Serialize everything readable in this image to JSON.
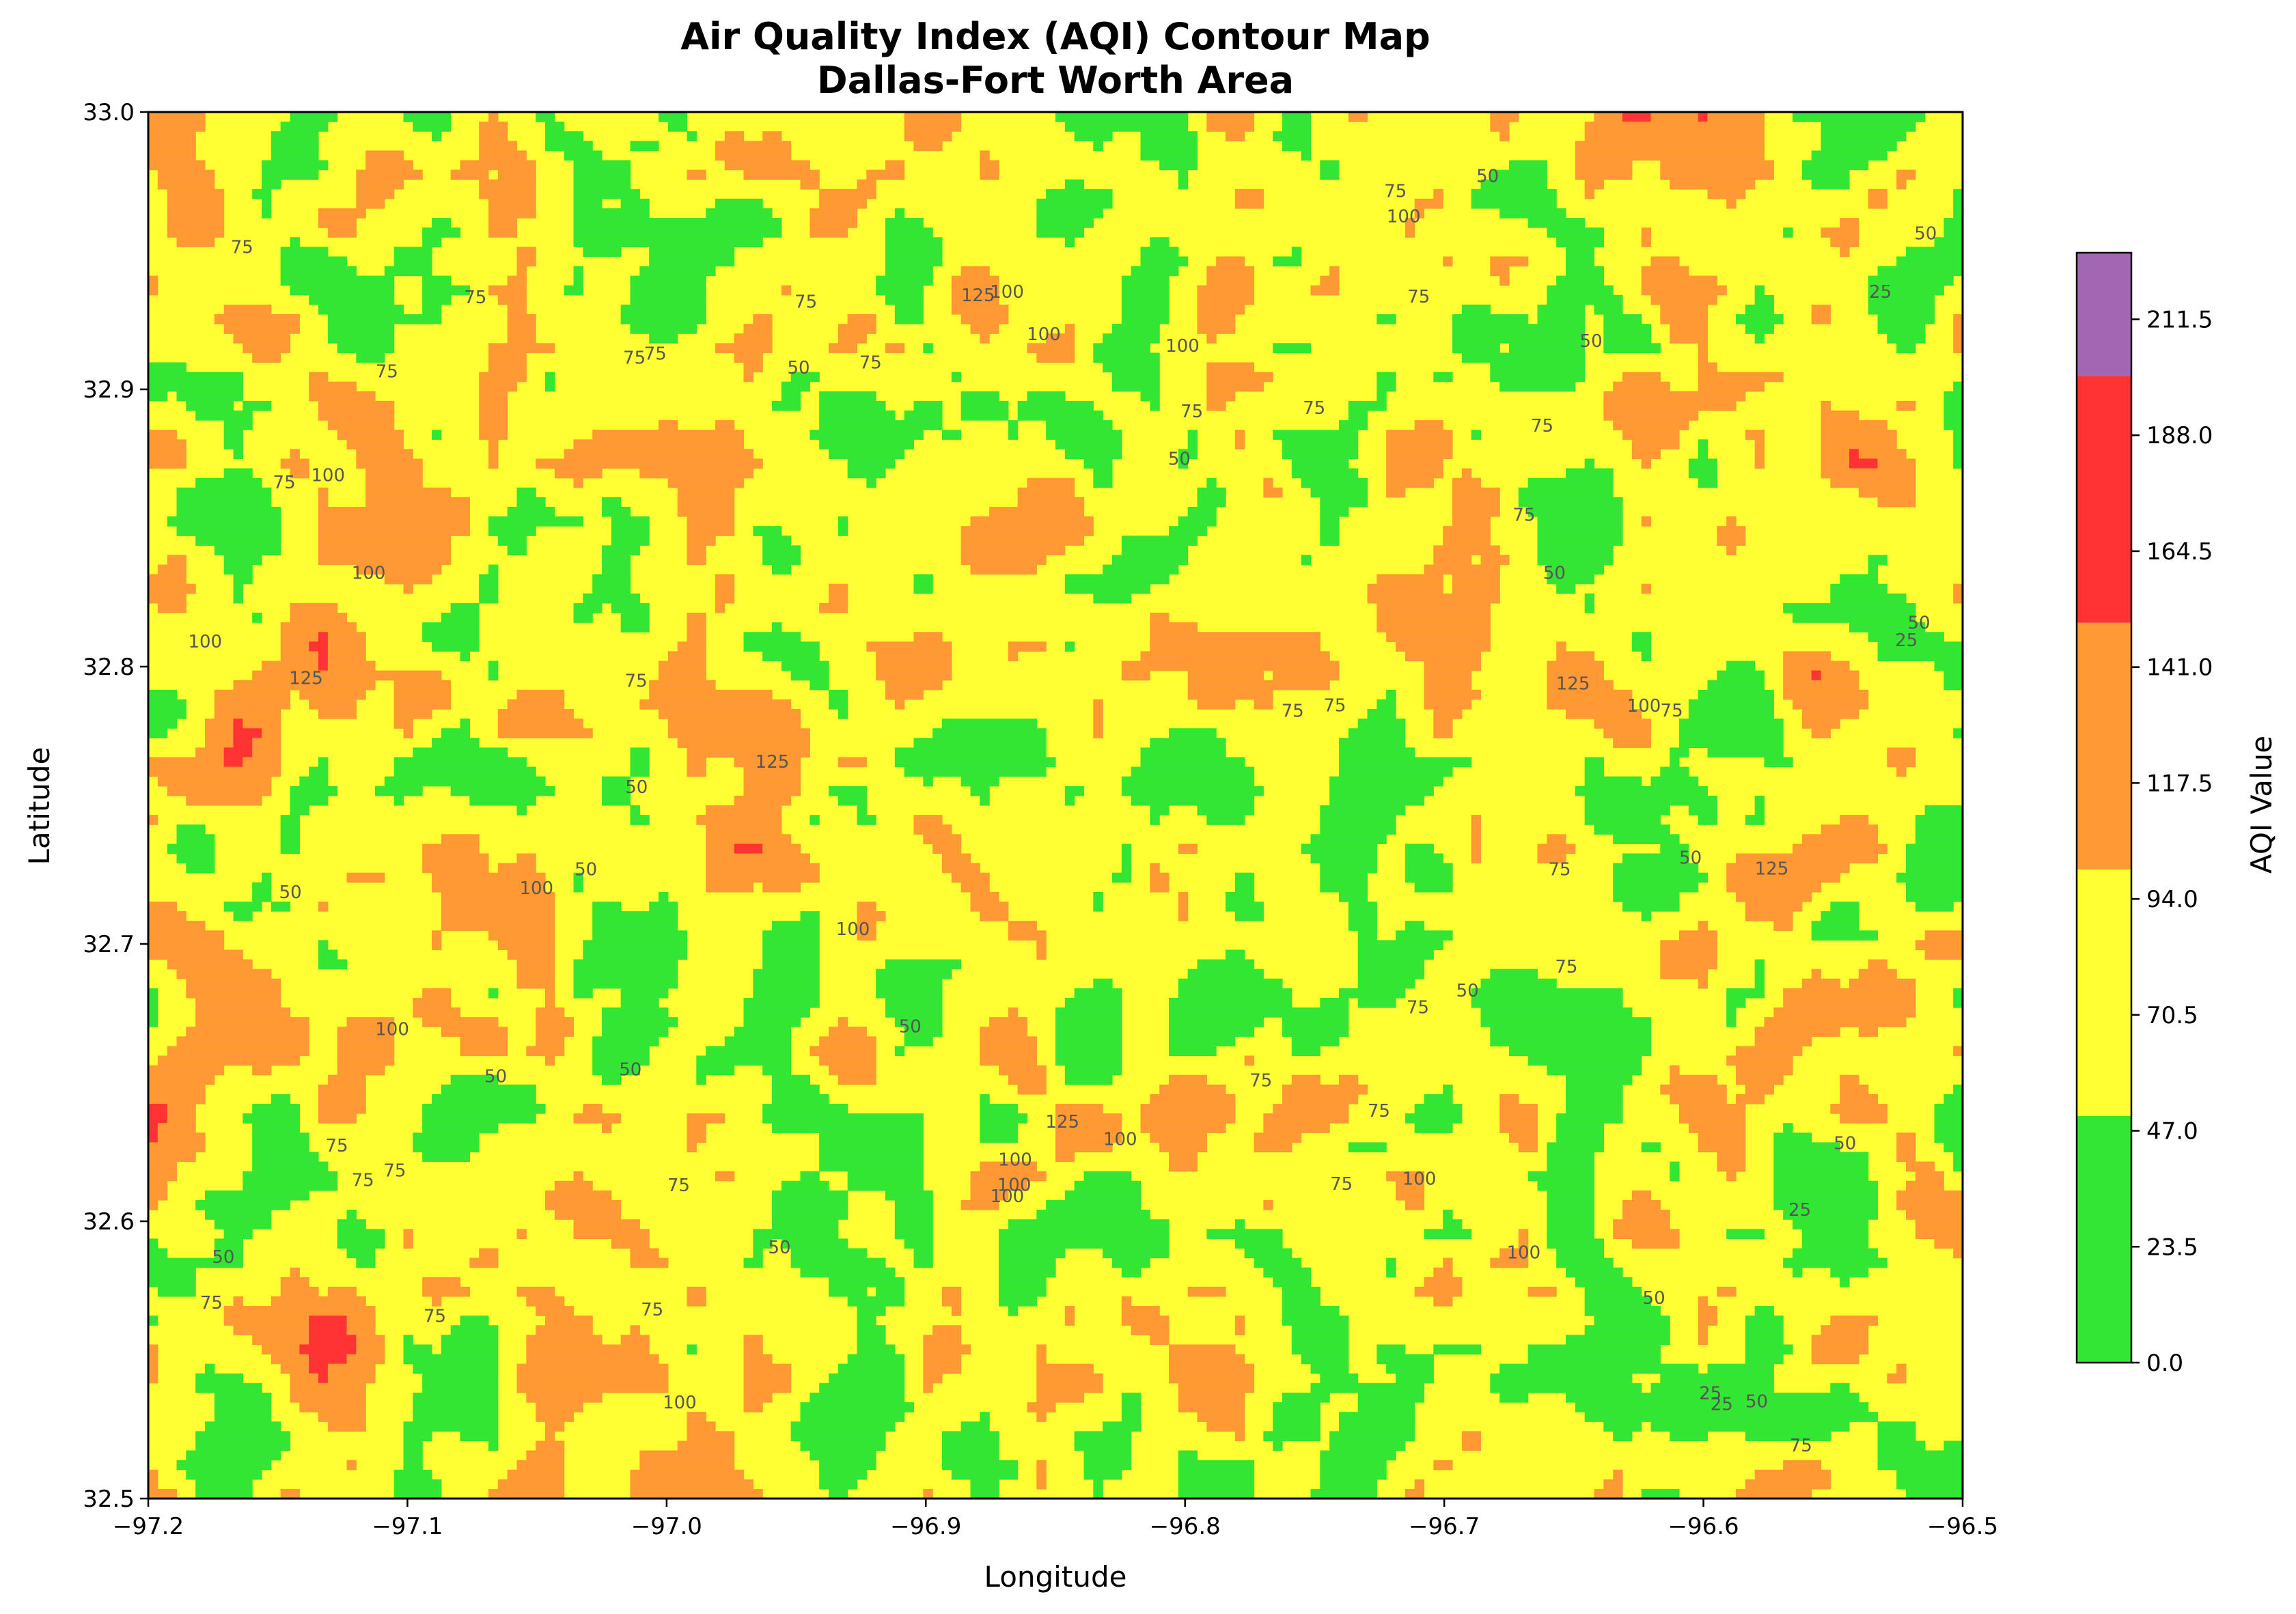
{
  "chart_data": {
    "type": "heatmap",
    "subtype": "filled-contour",
    "title": "Air Quality Index (AQI) Contour Map",
    "subtitle": "Dallas-Fort Worth Area",
    "xlabel": "Longitude",
    "ylabel": "Latitude",
    "xlim": [
      -97.2,
      -96.5
    ],
    "ylim": [
      32.5,
      33.0
    ],
    "x_ticks": [
      "−97.2",
      "−97.1",
      "−97.0",
      "−96.9",
      "−96.8",
      "−96.7",
      "−96.6",
      "−96.5"
    ],
    "y_ticks": [
      "32.5",
      "32.6",
      "32.7",
      "32.8",
      "32.9",
      "33.0"
    ],
    "colorbar": {
      "label": "AQI Value",
      "range": [
        0,
        225
      ],
      "ticks": [
        "0.0",
        "23.5",
        "47.0",
        "70.5",
        "94.0",
        "117.5",
        "141.0",
        "164.5",
        "188.0",
        "211.5"
      ],
      "bands": [
        {
          "min": 0,
          "max": 50,
          "color": "#33e633"
        },
        {
          "min": 50,
          "max": 100,
          "color": "#ffff33"
        },
        {
          "min": 100,
          "max": 150,
          "color": "#ff9933"
        },
        {
          "min": 150,
          "max": 200,
          "color": "#ff3333"
        },
        {
          "min": 200,
          "max": 225,
          "color": "#a366b3"
        }
      ]
    },
    "contour_levels": [
      25,
      50,
      75,
      100,
      125
    ],
    "grid": false
  }
}
